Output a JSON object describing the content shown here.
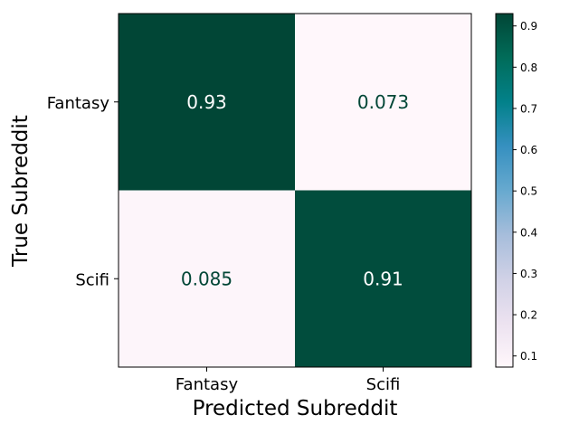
{
  "chart_data": {
    "type": "heatmap",
    "title": "",
    "xlabel": "Predicted Subreddit",
    "ylabel": "True Subreddit",
    "x_categories": [
      "Fantasy",
      "Scifi"
    ],
    "y_categories": [
      "Fantasy",
      "Scifi"
    ],
    "values": [
      [
        0.93,
        0.073
      ],
      [
        0.085,
        0.91
      ]
    ],
    "cell_labels": [
      [
        "0.93",
        "0.073"
      ],
      [
        "0.085",
        "0.91"
      ]
    ],
    "colormap": "PuBuGn",
    "colors": {
      "high": "#014636",
      "low": "#fff7fb",
      "high_text": "#ffffff",
      "low_text": "#014636"
    },
    "colorbar": {
      "range": [
        0.073,
        0.93
      ],
      "ticks": [
        0.1,
        0.2,
        0.3,
        0.4,
        0.5,
        0.6,
        0.7,
        0.8,
        0.9
      ],
      "tick_labels": [
        "0.1",
        "0.2",
        "0.3",
        "0.4",
        "0.5",
        "0.6",
        "0.7",
        "0.8",
        "0.9"
      ]
    }
  }
}
